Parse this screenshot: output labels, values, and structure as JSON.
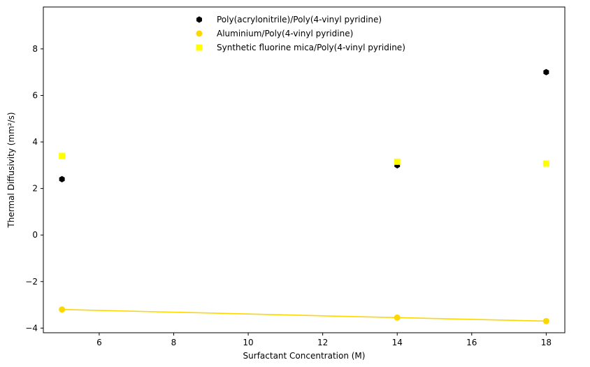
{
  "chart_data": {
    "type": "scatter",
    "title": "",
    "xlabel": "Surfactant Concentration (M)",
    "ylabel": "Thermal Diffusivity (mm²/s)",
    "xlim": [
      4.5,
      18.5
    ],
    "ylim": [
      -4.2,
      9.8
    ],
    "xticks": [
      6,
      8,
      10,
      12,
      14,
      16,
      18
    ],
    "yticks": [
      -4,
      -2,
      0,
      2,
      4,
      6,
      8
    ],
    "xtick_labels": [
      "6",
      "8",
      "10",
      "12",
      "14",
      "16",
      "18"
    ],
    "ytick_labels": [
      "−4",
      "−2",
      "0",
      "2",
      "4",
      "6",
      "8"
    ],
    "grid": false,
    "legend_position": "top-center",
    "series": [
      {
        "name": "Poly(acrylonitrile)/Poly(4-vinyl pyridine)",
        "marker": "hexagon",
        "color": "#000000",
        "x": [
          5,
          14,
          18
        ],
        "y": [
          2.4,
          3.0,
          7.0
        ],
        "line": false
      },
      {
        "name": "Aluminium/Poly(4-vinyl pyridine)",
        "marker": "circle",
        "color": "#FFD700",
        "x": [
          5,
          14,
          18
        ],
        "y": [
          -3.2,
          -3.55,
          -3.7
        ],
        "line": true
      },
      {
        "name": "Synthetic fluorine mica/Poly(4-vinyl pyridine)",
        "marker": "square",
        "color": "#FFFF00",
        "x": [
          5,
          14,
          18
        ],
        "y": [
          3.4,
          3.15,
          3.07
        ],
        "line": false
      }
    ]
  }
}
